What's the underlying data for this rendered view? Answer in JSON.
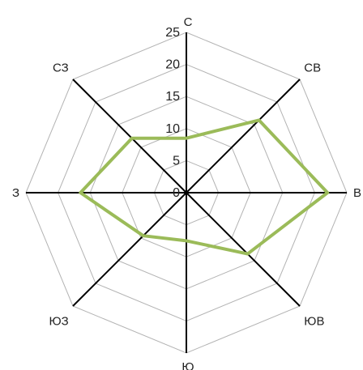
{
  "chart_data": {
    "type": "radar",
    "categories": [
      "С",
      "СВ",
      "В",
      "ЮВ",
      "Ю",
      "ЮЗ",
      "З",
      "СЗ"
    ],
    "ticks": [
      0,
      5,
      10,
      15,
      20,
      25
    ],
    "rmax": 25,
    "grid": true,
    "series": [
      {
        "values": [
          8.5,
          16,
          22,
          13.5,
          7.5,
          9.5,
          16.5,
          12
        ]
      }
    ],
    "colors": {
      "series": "#9bbb59",
      "axis": "#000000",
      "grid": "#b3b3b3"
    }
  }
}
